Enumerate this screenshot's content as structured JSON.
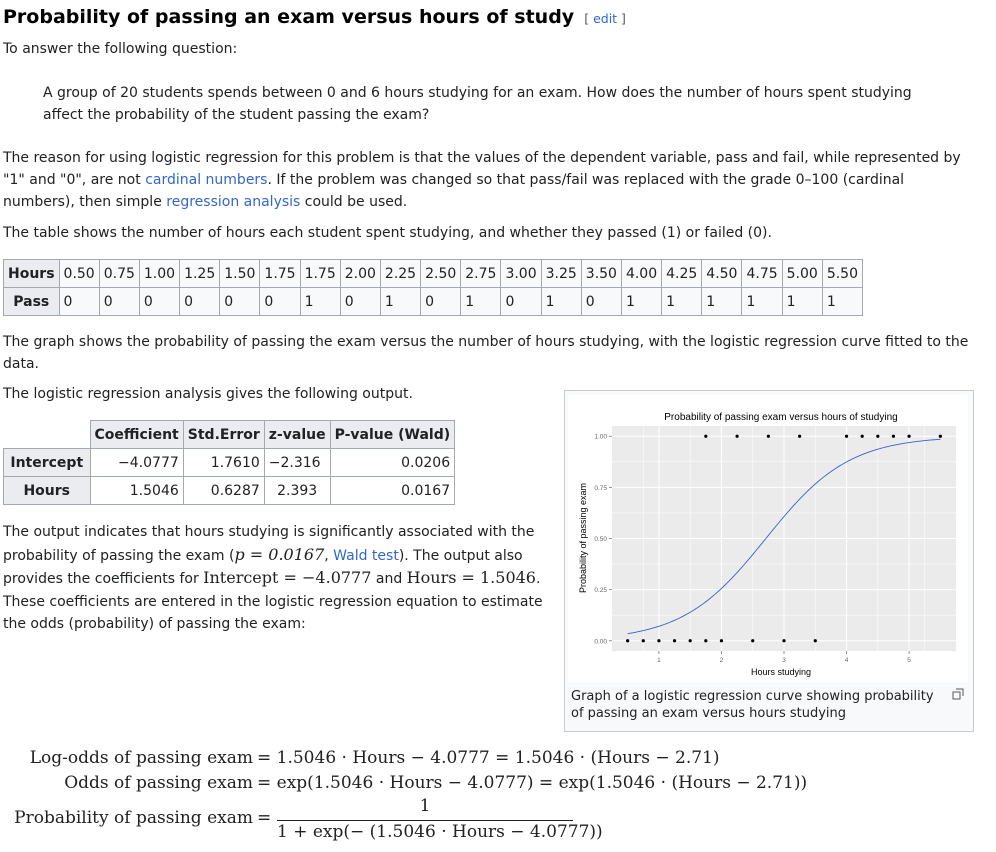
{
  "heading": {
    "title": "Probability of passing an exam versus hours of study",
    "edit_open": "[ ",
    "edit_label": "edit",
    "edit_close": " ]"
  },
  "intro": "To answer the following question:",
  "question": "A group of 20 students spends between 0 and 6 hours studying for an exam. How does the number of hours spent studying affect the probability of the student passing the exam?",
  "reason": {
    "t1": "The reason for using logistic regression for this problem is that the values of the dependent variable, pass and fail, while represented by \"1\" and \"0\", are not ",
    "link1": "cardinal numbers",
    "t2": ". If the problem was changed so that pass/fail was replaced with the grade 0–100 (cardinal numbers), then simple ",
    "link2": "regression analysis",
    "t3": " could be used."
  },
  "table_intro": "The table shows the number of hours each student spent studying, and whether they passed (1) or failed (0).",
  "hours_table": {
    "row1_label": "Hours",
    "row2_label": "Pass",
    "hours": [
      "0.50",
      "0.75",
      "1.00",
      "1.25",
      "1.50",
      "1.75",
      "1.75",
      "2.00",
      "2.25",
      "2.50",
      "2.75",
      "3.00",
      "3.25",
      "3.50",
      "4.00",
      "4.25",
      "4.50",
      "4.75",
      "5.00",
      "5.50"
    ],
    "pass": [
      "0",
      "0",
      "0",
      "0",
      "0",
      "0",
      "1",
      "0",
      "1",
      "0",
      "1",
      "0",
      "1",
      "0",
      "1",
      "1",
      "1",
      "1",
      "1",
      "1"
    ]
  },
  "graph_intro": "The graph shows the probability of passing the exam versus the number of hours studying, with the logistic regression curve fitted to the data.",
  "analysis_intro": "The logistic regression analysis gives the following output.",
  "regression_table": {
    "headers": [
      "",
      "Coefficient",
      "Std.Error",
      "z-value",
      "P-value (Wald)"
    ],
    "rows": [
      [
        "Intercept",
        "−4.0777",
        "1.7610",
        "−2.316",
        "0.0206"
      ],
      [
        "Hours",
        "1.5046",
        "0.6287",
        "2.393",
        "0.0167"
      ]
    ]
  },
  "output": {
    "t1": "The output indicates that hours studying is significantly associated with the probability of passing the exam (",
    "pval": "p = 0.0167",
    "t2": ", ",
    "link": "Wald test",
    "t3": "). The output also provides the coefficients for ",
    "m1": "Intercept = −4.0777",
    "t4": " and ",
    "m2": "Hours = 1.5046",
    "t5": ". These coefficients are entered in the logistic regression equation to estimate the odds (probability) of passing the exam:"
  },
  "figure": {
    "caption": "Graph of a logistic regression curve showing probability of passing an exam versus hours studying",
    "magnify_icon": "magnify-clip-icon"
  },
  "chart_data": {
    "type": "scatter",
    "title": "Probability of passing exam versus hours of studying",
    "xlabel": "Hours studying",
    "ylabel": "Probability of passing exam",
    "xlim": [
      0.25,
      5.75
    ],
    "ylim": [
      0,
      1
    ],
    "xticks": [
      "1",
      "2",
      "3",
      "4",
      "5"
    ],
    "xtick_values": [
      1,
      2,
      3,
      4,
      5
    ],
    "yticks": [
      "0.00",
      "0.25",
      "0.50",
      "0.75",
      "1.00"
    ],
    "ytick_values": [
      0,
      0.25,
      0.5,
      0.75,
      1
    ],
    "points": {
      "x": [
        0.5,
        0.75,
        1.0,
        1.25,
        1.5,
        1.75,
        1.75,
        2.0,
        2.25,
        2.5,
        2.75,
        3.0,
        3.25,
        3.5,
        4.0,
        4.25,
        4.5,
        4.75,
        5.0,
        5.5
      ],
      "y": [
        0,
        0,
        0,
        0,
        0,
        0,
        1,
        0,
        1,
        0,
        1,
        0,
        1,
        0,
        1,
        1,
        1,
        1,
        1,
        1
      ]
    },
    "curve": {
      "intercept": -4.0777,
      "slope": 1.5046,
      "x_from": 0.5,
      "x_to": 5.5
    },
    "grid": true,
    "colors": {
      "panel": "#ebebeb",
      "grid": "#ffffff",
      "curve": "#3a5fcd",
      "points": "#000000"
    }
  },
  "equations": {
    "line1_lhs": "Log-odds of passing exam",
    "line1_rhs": "= 1.5046 · Hours − 4.0777 = 1.5046 · (Hours − 2.71)",
    "line2_lhs": "Odds of passing exam",
    "line2_rhs": "= exp(1.5046 · Hours − 4.0777) = exp(1.5046 · (Hours − 2.71))",
    "line3_lhs": "Probability of passing exam",
    "line3_eq": "=",
    "line3_num": "1",
    "line3_den": "1 + exp(− (1.5046 · Hours − 4.0777))"
  }
}
